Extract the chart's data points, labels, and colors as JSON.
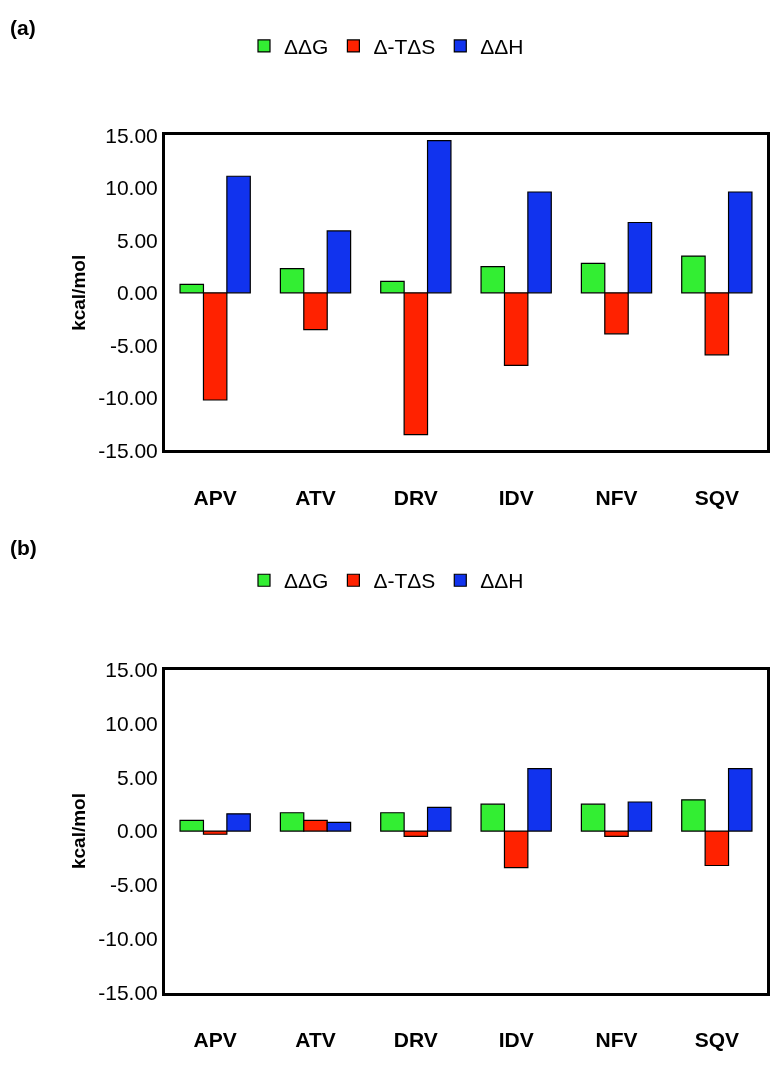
{
  "chart_data": [
    {
      "type": "bar",
      "title": "(a)",
      "ylabel": "kcal/mol",
      "categories": [
        "APV",
        "ATV",
        "DRV",
        "IDV",
        "NFV",
        "SQV"
      ],
      "series": [
        {
          "name": "ΔΔG",
          "color": "#33ee33",
          "values": [
            0.8,
            2.3,
            1.1,
            2.5,
            2.8,
            3.5
          ]
        },
        {
          "name": "Δ-TΔS",
          "color": "#ff2200",
          "values": [
            -10.2,
            -3.5,
            -13.5,
            -6.9,
            -3.9,
            -5.9
          ]
        },
        {
          "name": "ΔΔH",
          "color": "#1133ee",
          "values": [
            11.1,
            5.9,
            14.5,
            9.6,
            6.7,
            9.6
          ]
        }
      ],
      "ylim": [
        -15,
        15
      ],
      "yticks": [
        {
          "value": -15,
          "label": "-15.00"
        },
        {
          "value": -10,
          "label": "-10.00"
        },
        {
          "value": -5,
          "label": "-5.00"
        },
        {
          "value": 0,
          "label": "0.00"
        },
        {
          "value": 5,
          "label": "5.00"
        },
        {
          "value": 10,
          "label": "10.00"
        },
        {
          "value": 15,
          "label": "15.00"
        }
      ],
      "legend": "top"
    },
    {
      "type": "bar",
      "title": "(b)",
      "ylabel": "kcal/mol",
      "categories": [
        "APV",
        "ATV",
        "DRV",
        "IDV",
        "NFV",
        "SQV"
      ],
      "series": [
        {
          "name": "ΔΔG",
          "color": "#33ee33",
          "values": [
            1.0,
            1.7,
            1.7,
            2.5,
            2.5,
            2.9
          ]
        },
        {
          "name": "Δ-TΔS",
          "color": "#ff2200",
          "values": [
            -0.3,
            1.0,
            -0.5,
            -3.4,
            -0.5,
            -3.2
          ]
        },
        {
          "name": "ΔΔH",
          "color": "#1133ee",
          "values": [
            1.6,
            0.8,
            2.2,
            5.8,
            2.7,
            5.8
          ]
        }
      ],
      "ylim": [
        -15,
        15
      ],
      "yticks": [
        {
          "value": -15,
          "label": "-15.00"
        },
        {
          "value": -10,
          "label": "-10.00"
        },
        {
          "value": -5,
          "label": "-5.00"
        },
        {
          "value": 0,
          "label": "0.00"
        },
        {
          "value": 5,
          "label": "5.00"
        },
        {
          "value": 10,
          "label": "10.00"
        },
        {
          "value": 15,
          "label": "15.00"
        }
      ],
      "legend": "top"
    }
  ]
}
